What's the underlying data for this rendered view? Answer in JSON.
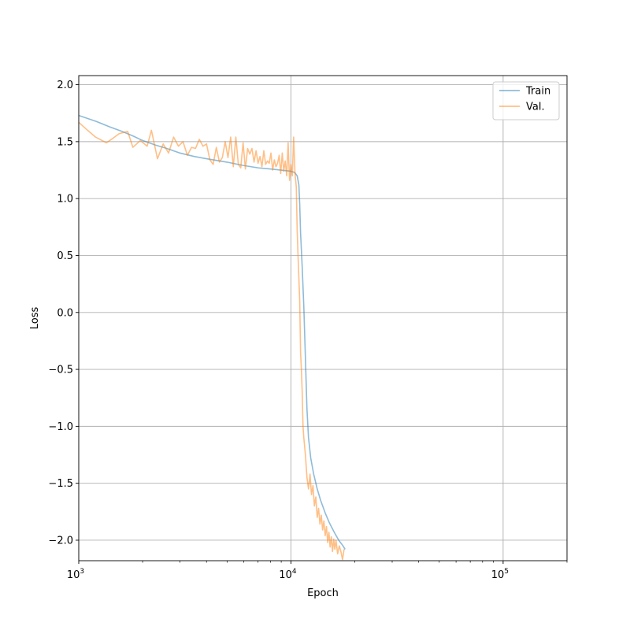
{
  "chart_data": {
    "type": "line",
    "xlabel": "Epoch",
    "ylabel": "Loss",
    "xscale": "log",
    "xlim": [
      1000,
      200000
    ],
    "ylim": [
      -2.18,
      2.08
    ],
    "grid": true,
    "legend_placement": "top-right",
    "x_major_ticks": [
      {
        "value": 1000,
        "base": "10",
        "exp": "3"
      },
      {
        "value": 10000,
        "base": "10",
        "exp": "4"
      },
      {
        "value": 100000,
        "base": "10",
        "exp": "5"
      }
    ],
    "y_ticks": [
      {
        "value": 2.0,
        "label": "2.0"
      },
      {
        "value": 1.5,
        "label": "1.5"
      },
      {
        "value": 1.0,
        "label": "1.0"
      },
      {
        "value": 0.5,
        "label": "0.5"
      },
      {
        "value": 0.0,
        "label": "0.0"
      },
      {
        "value": -0.5,
        "label": "−0.5"
      },
      {
        "value": -1.0,
        "label": "−1.0"
      },
      {
        "value": -1.5,
        "label": "−1.5"
      },
      {
        "value": -2.0,
        "label": "−2.0"
      }
    ],
    "series": [
      {
        "name": "Train",
        "color": "#1f77b4",
        "opacity": 0.5,
        "points": [
          [
            1000,
            1.73
          ],
          [
            1200,
            1.68
          ],
          [
            1400,
            1.63
          ],
          [
            1600,
            1.59
          ],
          [
            1800,
            1.55
          ],
          [
            2000,
            1.51
          ],
          [
            2300,
            1.47
          ],
          [
            2600,
            1.44
          ],
          [
            3000,
            1.4
          ],
          [
            3500,
            1.37
          ],
          [
            4000,
            1.35
          ],
          [
            5000,
            1.32
          ],
          [
            6000,
            1.29
          ],
          [
            7000,
            1.27
          ],
          [
            8000,
            1.26
          ],
          [
            9000,
            1.25
          ],
          [
            10000,
            1.24
          ],
          [
            10400,
            1.23
          ],
          [
            10700,
            1.2
          ],
          [
            10900,
            1.12
          ],
          [
            11000,
            0.95
          ],
          [
            11100,
            0.7
          ],
          [
            11300,
            0.4
          ],
          [
            11500,
            0.05
          ],
          [
            11700,
            -0.4
          ],
          [
            11900,
            -0.85
          ],
          [
            12100,
            -1.1
          ],
          [
            12400,
            -1.28
          ],
          [
            12800,
            -1.42
          ],
          [
            13300,
            -1.55
          ],
          [
            13800,
            -1.65
          ],
          [
            14500,
            -1.76
          ],
          [
            15200,
            -1.85
          ],
          [
            16000,
            -1.93
          ],
          [
            16800,
            -2.0
          ],
          [
            17600,
            -2.05
          ],
          [
            18000,
            -2.08
          ]
        ]
      },
      {
        "name": "Val.",
        "color": "#ff7f0e",
        "opacity": 0.5,
        "points": [
          [
            1000,
            1.67
          ],
          [
            1100,
            1.6
          ],
          [
            1200,
            1.54
          ],
          [
            1350,
            1.49
          ],
          [
            1450,
            1.53
          ],
          [
            1550,
            1.57
          ],
          [
            1700,
            1.59
          ],
          [
            1800,
            1.45
          ],
          [
            1950,
            1.51
          ],
          [
            2100,
            1.46
          ],
          [
            2200,
            1.6
          ],
          [
            2350,
            1.35
          ],
          [
            2500,
            1.48
          ],
          [
            2650,
            1.4
          ],
          [
            2800,
            1.54
          ],
          [
            2950,
            1.46
          ],
          [
            3100,
            1.5
          ],
          [
            3250,
            1.38
          ],
          [
            3400,
            1.45
          ],
          [
            3550,
            1.44
          ],
          [
            3700,
            1.52
          ],
          [
            3850,
            1.46
          ],
          [
            4000,
            1.48
          ],
          [
            4150,
            1.34
          ],
          [
            4300,
            1.3
          ],
          [
            4450,
            1.45
          ],
          [
            4600,
            1.32
          ],
          [
            4750,
            1.36
          ],
          [
            4900,
            1.5
          ],
          [
            5050,
            1.36
          ],
          [
            5200,
            1.54
          ],
          [
            5350,
            1.28
          ],
          [
            5500,
            1.54
          ],
          [
            5650,
            1.3
          ],
          [
            5800,
            1.27
          ],
          [
            5950,
            1.49
          ],
          [
            6100,
            1.26
          ],
          [
            6250,
            1.44
          ],
          [
            6400,
            1.39
          ],
          [
            6550,
            1.44
          ],
          [
            6700,
            1.32
          ],
          [
            6850,
            1.42
          ],
          [
            7000,
            1.31
          ],
          [
            7150,
            1.37
          ],
          [
            7300,
            1.28
          ],
          [
            7450,
            1.42
          ],
          [
            7600,
            1.3
          ],
          [
            7750,
            1.33
          ],
          [
            7900,
            1.31
          ],
          [
            8050,
            1.4
          ],
          [
            8200,
            1.25
          ],
          [
            8350,
            1.34
          ],
          [
            8500,
            1.28
          ],
          [
            8650,
            1.31
          ],
          [
            8800,
            1.38
          ],
          [
            8950,
            1.22
          ],
          [
            9100,
            1.4
          ],
          [
            9250,
            1.24
          ],
          [
            9400,
            1.33
          ],
          [
            9550,
            1.2
          ],
          [
            9700,
            1.49
          ],
          [
            9850,
            1.16
          ],
          [
            10000,
            1.3
          ],
          [
            10150,
            1.2
          ],
          [
            10300,
            1.54
          ],
          [
            10450,
            1.22
          ],
          [
            10600,
            1.1
          ],
          [
            10700,
            0.72
          ],
          [
            10800,
            0.5
          ],
          [
            10900,
            0.3
          ],
          [
            11000,
            0.1
          ],
          [
            11100,
            -0.35
          ],
          [
            11200,
            -0.5
          ],
          [
            11300,
            -0.7
          ],
          [
            11400,
            -1.0
          ],
          [
            11500,
            -1.1
          ],
          [
            11700,
            -1.25
          ],
          [
            11900,
            -1.45
          ],
          [
            12100,
            -1.55
          ],
          [
            12300,
            -1.42
          ],
          [
            12500,
            -1.6
          ],
          [
            12700,
            -1.52
          ],
          [
            12900,
            -1.7
          ],
          [
            13100,
            -1.62
          ],
          [
            13300,
            -1.8
          ],
          [
            13500,
            -1.72
          ],
          [
            13700,
            -1.86
          ],
          [
            13900,
            -1.78
          ],
          [
            14100,
            -1.91
          ],
          [
            14300,
            -1.83
          ],
          [
            14500,
            -1.96
          ],
          [
            14700,
            -1.88
          ],
          [
            14900,
            -2.02
          ],
          [
            15100,
            -1.93
          ],
          [
            15300,
            -2.06
          ],
          [
            15500,
            -1.97
          ],
          [
            15700,
            -2.1
          ],
          [
            15900,
            -1.99
          ],
          [
            16100,
            -2.08
          ],
          [
            16300,
            -2.0
          ],
          [
            16600,
            -2.12
          ],
          [
            16900,
            -2.05
          ],
          [
            17200,
            -2.1
          ],
          [
            17500,
            -2.17
          ],
          [
            17800,
            -2.08
          ]
        ]
      }
    ]
  }
}
